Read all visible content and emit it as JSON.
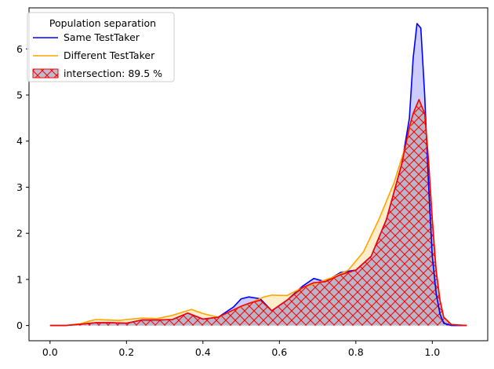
{
  "chart_data": {
    "type": "area",
    "title": "",
    "xlabel": "",
    "ylabel": "",
    "xlim": [
      -0.055,
      1.145
    ],
    "ylim": [
      -0.33,
      6.89
    ],
    "xticks": [
      0.0,
      0.2,
      0.4,
      0.6,
      0.8,
      1.0
    ],
    "xtick_labels": [
      "0.0",
      "0.2",
      "0.4",
      "0.6",
      "0.8",
      "1.0"
    ],
    "yticks": [
      0,
      1,
      2,
      3,
      4,
      5,
      6
    ],
    "ytick_labels": [
      "0",
      "1",
      "2",
      "3",
      "4",
      "5",
      "6"
    ],
    "grid": false,
    "legend": {
      "title": "Population separation",
      "placement": "top-left",
      "entries": [
        "Same TestTaker",
        "Different TestTaker",
        "intersection: 89.5 %"
      ]
    },
    "series": [
      {
        "name": "Same TestTaker",
        "color": "#0000ff",
        "fill": "#0000ff",
        "fill_opacity": 0.2,
        "x": [
          0.0,
          0.04,
          0.08,
          0.12,
          0.16,
          0.2,
          0.24,
          0.28,
          0.32,
          0.36,
          0.4,
          0.44,
          0.48,
          0.5,
          0.52,
          0.55,
          0.58,
          0.62,
          0.66,
          0.69,
          0.72,
          0.76,
          0.8,
          0.84,
          0.88,
          0.92,
          0.94,
          0.95,
          0.96,
          0.97,
          0.98,
          0.99,
          1.0,
          1.01,
          1.02,
          1.03,
          1.05,
          1.09
        ],
        "y": [
          0.0,
          0.0,
          0.03,
          0.06,
          0.06,
          0.05,
          0.12,
          0.12,
          0.13,
          0.27,
          0.14,
          0.18,
          0.4,
          0.58,
          0.62,
          0.58,
          0.32,
          0.55,
          0.85,
          1.02,
          0.95,
          1.15,
          1.2,
          1.5,
          2.3,
          3.5,
          4.5,
          5.8,
          6.55,
          6.45,
          5.0,
          3.1,
          1.5,
          0.7,
          0.25,
          0.05,
          0.0,
          0.0
        ]
      },
      {
        "name": "Different TestTaker",
        "color": "#ffa500",
        "fill": "#ffa500",
        "fill_opacity": 0.2,
        "x": [
          0.0,
          0.04,
          0.08,
          0.1,
          0.12,
          0.15,
          0.18,
          0.2,
          0.24,
          0.28,
          0.32,
          0.37,
          0.4,
          0.44,
          0.48,
          0.52,
          0.56,
          0.58,
          0.62,
          0.66,
          0.7,
          0.74,
          0.78,
          0.82,
          0.86,
          0.9,
          0.93,
          0.95,
          0.965,
          0.98,
          0.99,
          1.0,
          1.01,
          1.02,
          1.03,
          1.05,
          1.09
        ],
        "y": [
          0.0,
          0.0,
          0.04,
          0.09,
          0.13,
          0.12,
          0.11,
          0.13,
          0.16,
          0.15,
          0.22,
          0.35,
          0.26,
          0.18,
          0.34,
          0.48,
          0.62,
          0.66,
          0.65,
          0.82,
          0.93,
          1.05,
          1.2,
          1.6,
          2.3,
          3.1,
          3.9,
          4.6,
          4.9,
          4.6,
          3.6,
          2.3,
          1.2,
          0.55,
          0.18,
          0.02,
          0.0
        ]
      },
      {
        "name": "intersection: 89.5 %",
        "color": "#ff0000",
        "fill": "#b5b5c8",
        "fill_opacity": 0.9,
        "hatch": "cross",
        "x": [
          0.0,
          0.04,
          0.08,
          0.12,
          0.16,
          0.2,
          0.24,
          0.28,
          0.32,
          0.36,
          0.4,
          0.44,
          0.48,
          0.5,
          0.52,
          0.55,
          0.58,
          0.62,
          0.66,
          0.69,
          0.72,
          0.76,
          0.8,
          0.84,
          0.88,
          0.92,
          0.94,
          0.95,
          0.965,
          0.98,
          0.99,
          1.0,
          1.01,
          1.02,
          1.03,
          1.05,
          1.09
        ],
        "y": [
          0.0,
          0.0,
          0.03,
          0.06,
          0.06,
          0.05,
          0.12,
          0.12,
          0.13,
          0.27,
          0.14,
          0.18,
          0.34,
          0.42,
          0.48,
          0.55,
          0.32,
          0.55,
          0.82,
          0.93,
          0.95,
          1.1,
          1.2,
          1.5,
          2.3,
          3.5,
          4.3,
          4.6,
          4.9,
          4.6,
          3.6,
          2.3,
          1.2,
          0.55,
          0.18,
          0.02,
          0.0
        ]
      }
    ]
  }
}
